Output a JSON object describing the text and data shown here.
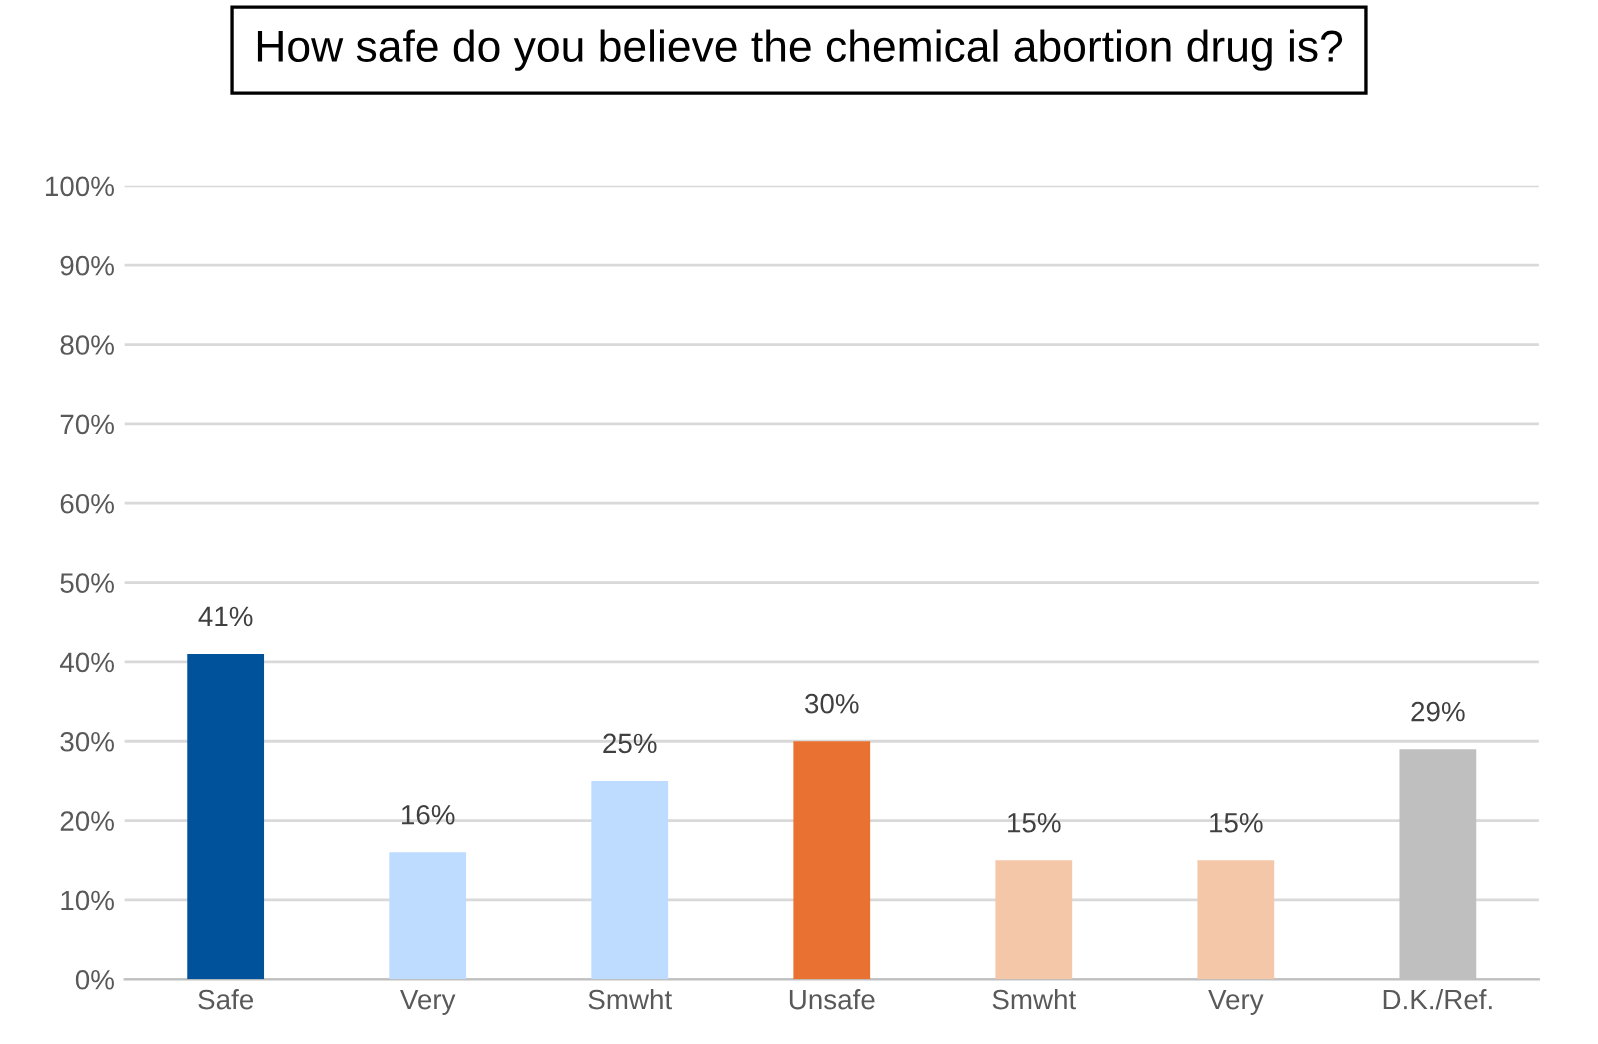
{
  "chart_data": {
    "type": "bar",
    "title": "How safe do you believe the chemical abortion drug is?",
    "categories": [
      "Safe",
      "Very",
      "Smwht",
      "Unsafe",
      "Smwht",
      "Very",
      "D.K./Ref."
    ],
    "values": [
      41,
      16,
      25,
      30,
      15,
      15,
      29
    ],
    "colors": [
      "#00529b",
      "#bddcff",
      "#bddcff",
      "#e97132",
      "#f5c7a9",
      "#f5c7a9",
      "#bfbfbf"
    ],
    "value_labels": [
      "41%",
      "16%",
      "25%",
      "30%",
      "15%",
      "15%",
      "29%"
    ],
    "ylim": [
      0,
      100
    ],
    "yticks": [
      {
        "value": 0,
        "label": "0%"
      },
      {
        "value": 10,
        "label": "10%"
      },
      {
        "value": 20,
        "label": "20%"
      },
      {
        "value": 30,
        "label": "30%"
      },
      {
        "value": 40,
        "label": "40%"
      },
      {
        "value": 50,
        "label": "50%"
      },
      {
        "value": 60,
        "label": "60%"
      },
      {
        "value": 70,
        "label": "70%"
      },
      {
        "value": 80,
        "label": "80%"
      },
      {
        "value": 90,
        "label": "90%"
      },
      {
        "value": 100,
        "label": "100%"
      }
    ],
    "grid": "y",
    "legend": false
  }
}
